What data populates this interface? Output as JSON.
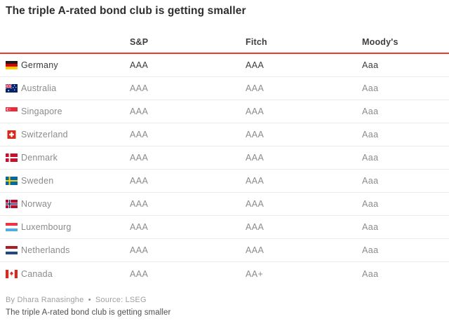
{
  "chart_data": {
    "type": "table",
    "title": "The triple A-rated bond club is getting smaller",
    "columns": [
      "S&P",
      "Fitch",
      "Moody's"
    ],
    "rows": [
      {
        "country": "Germany",
        "flag": "germany",
        "highlight": true,
        "ratings": [
          "AAA",
          "AAA",
          "Aaa"
        ]
      },
      {
        "country": "Australia",
        "flag": "australia",
        "highlight": false,
        "ratings": [
          "AAA",
          "AAA",
          "Aaa"
        ]
      },
      {
        "country": "Singapore",
        "flag": "singapore",
        "highlight": false,
        "ratings": [
          "AAA",
          "AAA",
          "Aaa"
        ]
      },
      {
        "country": "Switzerland",
        "flag": "switzerland",
        "highlight": false,
        "ratings": [
          "AAA",
          "AAA",
          "Aaa"
        ]
      },
      {
        "country": "Denmark",
        "flag": "denmark",
        "highlight": false,
        "ratings": [
          "AAA",
          "AAA",
          "Aaa"
        ]
      },
      {
        "country": "Sweden",
        "flag": "sweden",
        "highlight": false,
        "ratings": [
          "AAA",
          "AAA",
          "Aaa"
        ]
      },
      {
        "country": "Norway",
        "flag": "norway",
        "highlight": false,
        "ratings": [
          "AAA",
          "AAA",
          "Aaa"
        ]
      },
      {
        "country": "Luxembourg",
        "flag": "luxembourg",
        "highlight": false,
        "ratings": [
          "AAA",
          "AAA",
          "Aaa"
        ]
      },
      {
        "country": "Netherlands",
        "flag": "netherlands",
        "highlight": false,
        "ratings": [
          "AAA",
          "AAA",
          "Aaa"
        ]
      },
      {
        "country": "Canada",
        "flag": "canada",
        "highlight": false,
        "ratings": [
          "AAA",
          "AA+",
          "Aaa"
        ]
      }
    ],
    "grid": "horizontal-separators",
    "legend_position": "none"
  },
  "footer": {
    "byline": "By Dhara Ranasinghe",
    "bullet": "•",
    "source": "Source: LSEG",
    "caption": "The triple A-rated bond club is getting smaller"
  },
  "colors": {
    "accent_red": "#ee3b2e",
    "separator": "#ebebeb",
    "highlight_text": "#3b3b3b",
    "muted_text": "#8b8b8b",
    "header_text": "#3f3f3f"
  }
}
